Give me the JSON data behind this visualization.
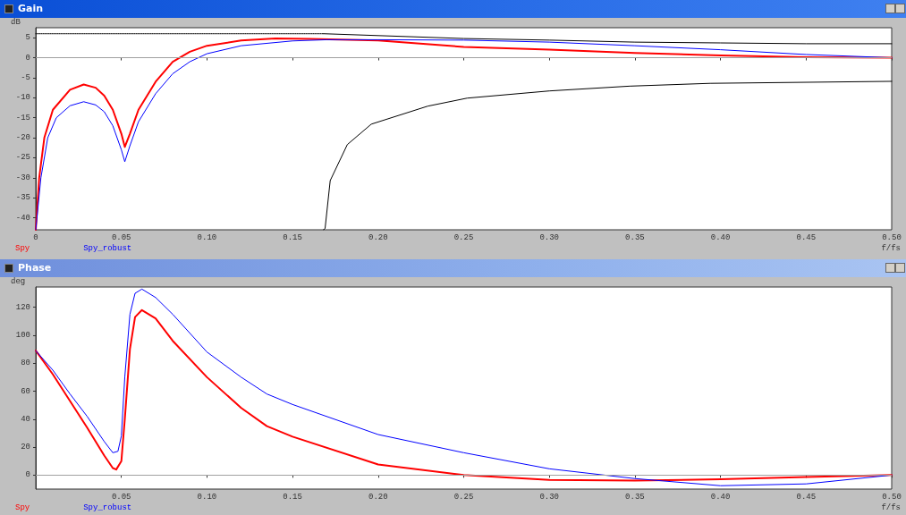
{
  "chart_data": [
    {
      "type": "line",
      "title": "Gain",
      "ylabel": "dB",
      "xlabel": "f/fs",
      "xlim": [
        0,
        0.5
      ],
      "ylim": [
        -43,
        7.5
      ],
      "xticks": [
        0,
        {
          "value": 0.05,
          "label": "0.05"
        },
        {
          "value": 0.1,
          "label": "0.10"
        },
        {
          "value": 0.15,
          "label": "0.15"
        },
        {
          "value": 0.2,
          "label": "0.20"
        },
        {
          "value": 0.25,
          "label": "0.25"
        },
        {
          "value": 0.3,
          "label": "0.30"
        },
        {
          "value": 0.35,
          "label": "0.35"
        },
        {
          "value": 0.4,
          "label": "0.40"
        },
        {
          "value": 0.45,
          "label": "0.45"
        },
        {
          "value": 0.5,
          "label": "0.50"
        }
      ],
      "yticks": [
        -40,
        -35,
        -30,
        -25,
        -20,
        -15,
        -10,
        -5,
        0,
        5
      ],
      "grid": false,
      "legend": "bottom left",
      "marker": "none",
      "ref_lines": [
        {
          "axis": "y",
          "value": 0,
          "color": "#a0a0a0"
        }
      ],
      "series": [
        {
          "name": "Spy",
          "color": "#ff0000",
          "x": [
            0,
            0.002,
            0.005,
            0.01,
            0.02,
            0.028,
            0.035,
            0.04,
            0.045,
            0.05,
            0.052,
            0.055,
            0.06,
            0.07,
            0.08,
            0.09,
            0.1,
            0.12,
            0.14,
            0.16,
            0.2,
            0.25,
            0.3,
            0.35,
            0.4,
            0.45,
            0.5
          ],
          "values": [
            -43,
            -30,
            -20,
            -13,
            -8,
            -6.7,
            -7.5,
            -9.5,
            -13,
            -19,
            -22.3,
            -19,
            -13,
            -6,
            -1,
            1.5,
            3,
            4.3,
            4.8,
            4.7,
            4.3,
            2.7,
            2,
            1.2,
            0.6,
            0.1,
            0
          ]
        },
        {
          "name": "Spy_robust",
          "color": "#0000ff",
          "x": [
            0,
            0.003,
            0.007,
            0.012,
            0.02,
            0.028,
            0.035,
            0.04,
            0.045,
            0.05,
            0.052,
            0.055,
            0.06,
            0.07,
            0.08,
            0.09,
            0.1,
            0.12,
            0.15,
            0.17,
            0.2,
            0.25,
            0.3,
            0.35,
            0.4,
            0.45,
            0.5
          ],
          "values": [
            -43,
            -30,
            -20,
            -15,
            -12,
            -11,
            -11.8,
            -13.5,
            -17,
            -23,
            -26,
            -22,
            -16,
            -9,
            -4,
            -1,
            1,
            3,
            4.2,
            4.5,
            4.5,
            4.4,
            3.9,
            3,
            2,
            0.8,
            0
          ]
        },
        {
          "color": "#000000",
          "line_style": "dotted",
          "x": [
            0,
            0.168
          ],
          "values": [
            6,
            6
          ]
        },
        {
          "color": "#000000",
          "x": [
            0.168,
            0.25,
            0.3,
            0.35,
            0.4,
            0.45,
            0.5
          ],
          "values": [
            6,
            4.8,
            4.4,
            3.9,
            3.7,
            3.5,
            3.5
          ]
        },
        {
          "color": "#000000",
          "x": [
            0.168,
            0.169,
            0.172,
            0.182,
            0.196,
            0.229,
            0.252,
            0.3,
            0.347,
            0.394,
            0.5
          ],
          "values": [
            -43,
            -42.7,
            -30.7,
            -21.7,
            -16.6,
            -12.1,
            -10.1,
            -8.3,
            -7.1,
            -6.4,
            -5.9
          ]
        }
      ]
    },
    {
      "type": "line",
      "title": "Phase",
      "ylabel": "deg",
      "xlabel": "f/fs",
      "xlim": [
        0,
        0.5
      ],
      "ylim": [
        -10,
        134.5
      ],
      "xticks": [
        {
          "value": 0.05,
          "label": "0.05"
        },
        {
          "value": 0.1,
          "label": "0.10"
        },
        {
          "value": 0.15,
          "label": "0.15"
        },
        {
          "value": 0.2,
          "label": "0.20"
        },
        {
          "value": 0.25,
          "label": "0.25"
        },
        {
          "value": 0.3,
          "label": "0.30"
        },
        {
          "value": 0.35,
          "label": "0.35"
        },
        {
          "value": 0.4,
          "label": "0.40"
        },
        {
          "value": 0.45,
          "label": "0.45"
        },
        {
          "value": 0.5,
          "label": "0.50"
        }
      ],
      "yticks": [
        0,
        20,
        40,
        60,
        80,
        100,
        120
      ],
      "grid": false,
      "legend": "bottom left",
      "marker": "none",
      "ref_lines": [
        {
          "axis": "y",
          "value": 0,
          "color": "#a0a0a0"
        }
      ],
      "series": [
        {
          "name": "Spy",
          "color": "#ff0000",
          "x": [
            0,
            0.01,
            0.02,
            0.03,
            0.04,
            0.045,
            0.047,
            0.05,
            0.052,
            0.055,
            0.058,
            0.062,
            0.07,
            0.08,
            0.1,
            0.12,
            0.135,
            0.15,
            0.2,
            0.25,
            0.3,
            0.35,
            0.4,
            0.45,
            0.5
          ],
          "values": [
            89,
            72,
            53,
            34,
            14,
            5,
            4,
            10,
            40,
            90,
            113,
            118,
            112,
            96,
            70,
            48,
            35,
            27.5,
            7.6,
            0,
            -3.5,
            -4,
            -3,
            -1.3,
            0
          ]
        },
        {
          "name": "Spy_robust",
          "color": "#0000ff",
          "x": [
            0,
            0.01,
            0.02,
            0.03,
            0.04,
            0.045,
            0.048,
            0.05,
            0.052,
            0.055,
            0.058,
            0.062,
            0.07,
            0.08,
            0.1,
            0.12,
            0.135,
            0.15,
            0.2,
            0.25,
            0.3,
            0.35,
            0.4,
            0.45,
            0.5
          ],
          "values": [
            89,
            75,
            58,
            42,
            24,
            16,
            17,
            28,
            70,
            115,
            130,
            133,
            127,
            115,
            88,
            70,
            58,
            50.5,
            29,
            16,
            4.5,
            -2.5,
            -7.6,
            -6.3,
            0
          ]
        }
      ]
    }
  ]
}
